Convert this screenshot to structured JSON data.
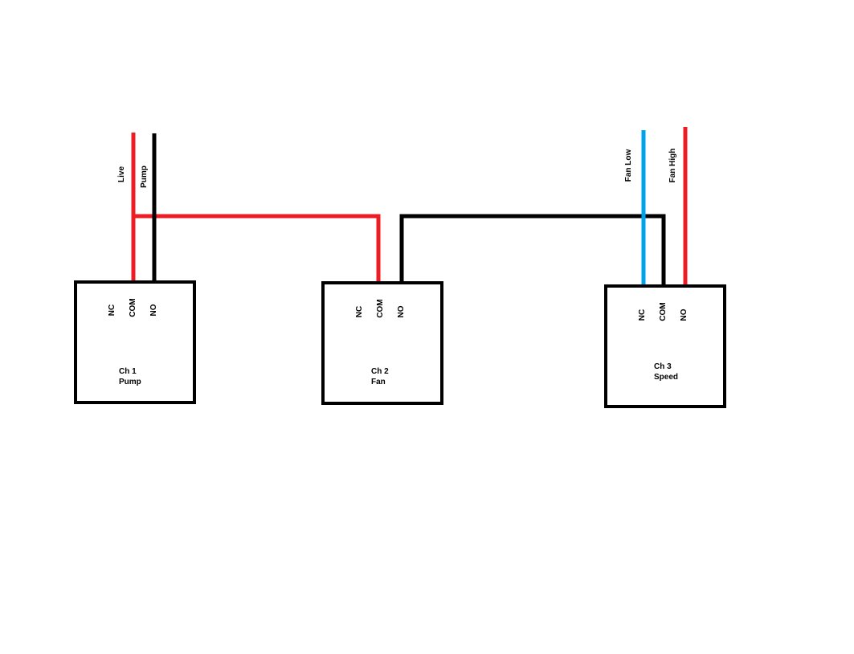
{
  "colors": {
    "background": "#ffffff",
    "red_wire": "#ed1c24",
    "black_wire": "#000000",
    "blue_wire": "#00a2e8",
    "box_stroke": "#000000"
  },
  "wires": {
    "live": "Live",
    "pump": "Pump",
    "fan_low": "Fan Low",
    "fan_high": "Fan High"
  },
  "relays": [
    {
      "terminals": [
        "NC",
        "COM",
        "NO"
      ],
      "channel": "Ch 1",
      "function": "Pump"
    },
    {
      "terminals": [
        "NC",
        "COM",
        "NO"
      ],
      "channel": "Ch 2",
      "function": "Fan"
    },
    {
      "terminals": [
        "NC",
        "COM",
        "NO"
      ],
      "channel": "Ch 3",
      "function": "Speed"
    }
  ]
}
